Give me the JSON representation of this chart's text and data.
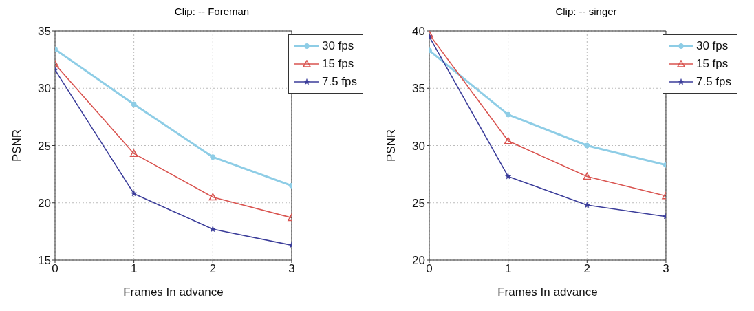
{
  "chart_data": [
    {
      "type": "line",
      "title": "Clip: -- Foreman",
      "xlabel": "Frames In advance",
      "ylabel": "PSNR",
      "x": [
        0,
        1,
        2,
        3
      ],
      "xlim": [
        0,
        3
      ],
      "xticks": [
        0,
        1,
        2,
        3
      ],
      "ylim": [
        15,
        35
      ],
      "yticks": [
        15,
        20,
        25,
        30,
        35
      ],
      "grid": true,
      "legend": "top right",
      "line_style": "solid",
      "series": [
        {
          "name": "30 fps",
          "color": "#8ecde6",
          "marker": "circle",
          "values": [
            33.4,
            28.6,
            24.0,
            21.5
          ]
        },
        {
          "name": "15 fps",
          "color": "#d9534f",
          "marker": "triangle",
          "values": [
            32.1,
            24.3,
            20.5,
            18.7
          ]
        },
        {
          "name": "7.5 fps",
          "color": "#3b3d9a",
          "marker": "star",
          "values": [
            31.6,
            20.8,
            17.7,
            16.3
          ]
        }
      ]
    },
    {
      "type": "line",
      "title": "Clip: -- singer",
      "xlabel": "Frames In advance",
      "ylabel": "PSNR",
      "x": [
        0,
        1,
        2,
        3
      ],
      "xlim": [
        0,
        3
      ],
      "xticks": [
        0,
        1,
        2,
        3
      ],
      "ylim": [
        20,
        40
      ],
      "yticks": [
        20,
        25,
        30,
        35,
        40
      ],
      "grid": true,
      "legend": "top right",
      "line_style": "solid",
      "series": [
        {
          "name": "30 fps",
          "color": "#8ecde6",
          "marker": "circle",
          "values": [
            38.3,
            32.7,
            30.0,
            28.3
          ]
        },
        {
          "name": "15 fps",
          "color": "#d9534f",
          "marker": "triangle",
          "values": [
            39.7,
            30.4,
            27.3,
            25.6
          ]
        },
        {
          "name": "7.5 fps",
          "color": "#3b3d9a",
          "marker": "star",
          "values": [
            39.5,
            27.3,
            24.8,
            23.8
          ]
        }
      ]
    }
  ]
}
